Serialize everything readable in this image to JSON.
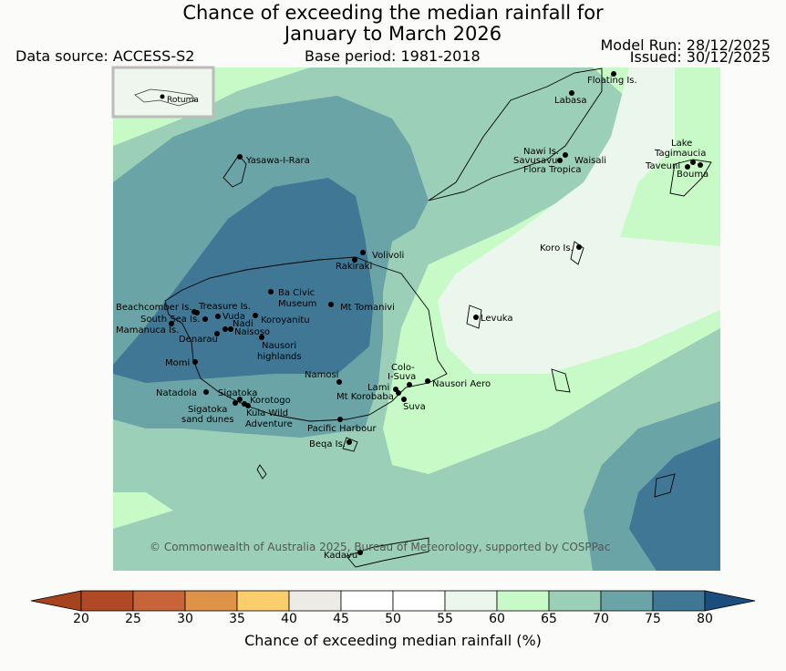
{
  "title_line1": "Chance of exceeding the median rainfall for",
  "title_line2": "January to March 2026",
  "data_source": "Data source: ACCESS-S2",
  "base_period": "Base period: 1981-2018",
  "model_run": "Model Run: 28/12/2025",
  "issued": "Issued: 30/12/2025",
  "copyright": "© Commonwealth of Australia 2025, Bureau of Meteorology, supported by COSPPac",
  "inset_label": "Rotuma",
  "places": [
    {
      "name": "Floating Is."
    },
    {
      "name": "Labasa"
    },
    {
      "name": "Nawi Is."
    },
    {
      "name": "Savusavu"
    },
    {
      "name": "Waisali"
    },
    {
      "name": "Flora Tropica"
    },
    {
      "name": "Lake"
    },
    {
      "name": "Tagimaucia"
    },
    {
      "name": "Taveuni"
    },
    {
      "name": "Bouma"
    },
    {
      "name": "Yasawa-I-Rara"
    },
    {
      "name": "Koro Is."
    },
    {
      "name": "Volivoli"
    },
    {
      "name": "Rakiraki"
    },
    {
      "name": "Ba Civic"
    },
    {
      "name": "Museum"
    },
    {
      "name": "Mt Tomanivi"
    },
    {
      "name": "Levuka"
    },
    {
      "name": "Beachcomber Is."
    },
    {
      "name": "Treasure Is."
    },
    {
      "name": "South Sea Is."
    },
    {
      "name": "Vuda"
    },
    {
      "name": "Koroyanitu"
    },
    {
      "name": "Mamanuca Is."
    },
    {
      "name": "Nadi"
    },
    {
      "name": "Naisoso"
    },
    {
      "name": "Denarau"
    },
    {
      "name": "Nausori"
    },
    {
      "name": "highlands"
    },
    {
      "name": "Momi"
    },
    {
      "name": "Colo-"
    },
    {
      "name": "I-Suva"
    },
    {
      "name": "Namosi"
    },
    {
      "name": "Nausori Aero"
    },
    {
      "name": "Lami"
    },
    {
      "name": "Natadola"
    },
    {
      "name": "Sigatoka"
    },
    {
      "name": "Mt Korobaba"
    },
    {
      "name": "Korotogo"
    },
    {
      "name": "Suva"
    },
    {
      "name": "Sigatoka"
    },
    {
      "name": "sand dunes"
    },
    {
      "name": "Kula Wild"
    },
    {
      "name": "Adventure"
    },
    {
      "name": "Pacific Harbour"
    },
    {
      "name": "Beqa Is."
    },
    {
      "name": "Kadavu"
    }
  ],
  "colorbar": {
    "ticks": [
      "20",
      "25",
      "30",
      "35",
      "40",
      "45",
      "50",
      "55",
      "60",
      "65",
      "70",
      "75",
      "80"
    ],
    "colors": [
      "#a5431f",
      "#b04a26",
      "#c8643a",
      "#df9348",
      "#fccd6b",
      "#ecebe6",
      "#ffffff",
      "#ffffff",
      "#ebf6ec",
      "#c8fac8",
      "#9bcfb7",
      "#6aa4a6",
      "#3f7795",
      "#1b4e7d"
    ],
    "title": "Chance of exceeding median rainfall (%)"
  },
  "zone_colors": {
    "c55_60": "#ebf6ec",
    "c60_65": "#c8fac8",
    "c65_70": "#9bcfb7",
    "c70_75": "#6aa4a6",
    "c75_80": "#3f7795"
  }
}
